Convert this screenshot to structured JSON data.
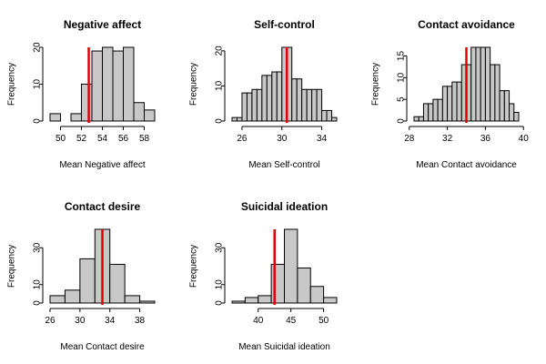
{
  "colors": {
    "bar_fill": "#c8c8c8",
    "bar_stroke": "#000000",
    "ref_line": "#e00000"
  },
  "chart_data": [
    {
      "type": "histogram",
      "title": "Negative affect",
      "xlabel": "Mean Negative affect",
      "ylabel": "Frequency",
      "bin_edges": [
        49,
        50,
        51,
        52,
        53,
        54,
        55,
        56,
        57,
        58,
        59
      ],
      "counts": [
        2,
        0,
        2,
        10,
        19,
        20,
        19,
        20,
        5,
        3
      ],
      "reference_line": 52.7,
      "xlim": [
        49,
        59
      ],
      "ylim": [
        0,
        20
      ],
      "xticks": [
        50,
        52,
        54,
        56,
        58
      ],
      "yticks": [
        0,
        10,
        20
      ],
      "grid": false,
      "legend": "none"
    },
    {
      "type": "histogram",
      "title": "Self-control",
      "xlabel": "Mean Self-control",
      "ylabel": "Frequency",
      "bin_edges": [
        25,
        25.5,
        26,
        26.5,
        27,
        27.5,
        28,
        28.5,
        29,
        29.5,
        30,
        30.5,
        31,
        31.5,
        32,
        32.5,
        33,
        33.5,
        34,
        34.5,
        35,
        35.5
      ],
      "counts": [
        1,
        1,
        8,
        8,
        9,
        9,
        13,
        13,
        14,
        14,
        21,
        21,
        12,
        12,
        9,
        9,
        9,
        9,
        3,
        3,
        1
      ],
      "reference_line": 30.5,
      "xlim": [
        25,
        35.5
      ],
      "ylim": [
        0,
        21
      ],
      "xticks": [
        26,
        30,
        34
      ],
      "yticks": [
        0,
        10,
        20
      ],
      "grid": false,
      "legend": "none"
    },
    {
      "type": "histogram",
      "title": "Contact avoidance",
      "xlabel": "Mean Contact avoidance",
      "ylabel": "Frequency",
      "bin_edges": [
        28.5,
        29,
        29.5,
        30,
        30.5,
        31,
        31.5,
        32,
        32.5,
        33,
        33.5,
        34,
        34.5,
        35,
        35.5,
        36,
        36.5,
        37,
        37.5,
        38,
        38.5,
        39,
        39.5
      ],
      "counts": [
        1,
        1,
        4,
        4,
        5,
        5,
        8,
        8,
        9,
        9,
        13,
        13,
        17,
        17,
        17,
        17,
        13,
        13,
        7,
        7,
        4,
        2
      ],
      "reference_line": 34,
      "xlim": [
        28.5,
        39.5
      ],
      "ylim": [
        0,
        17
      ],
      "xticks": [
        28,
        32,
        36,
        40
      ],
      "yticks": [
        0,
        5,
        10,
        15
      ],
      "grid": false,
      "legend": "none"
    },
    {
      "type": "histogram",
      "title": "Contact desire",
      "xlabel": "Mean Contact desire",
      "ylabel": "Frequency",
      "bin_edges": [
        26,
        28,
        30,
        32,
        34,
        36,
        38,
        40
      ],
      "counts": [
        4,
        7,
        24,
        40,
        21,
        4,
        1
      ],
      "reference_line": 33,
      "xlim": [
        26,
        40
      ],
      "ylim": [
        0,
        40
      ],
      "xticks": [
        26,
        30,
        34,
        38
      ],
      "yticks": [
        0,
        10,
        30
      ],
      "grid": false,
      "legend": "none"
    },
    {
      "type": "histogram",
      "title": "Suicidal ideation",
      "xlabel": "Mean Suicidal ideation",
      "ylabel": "Frequency",
      "bin_edges": [
        36,
        38,
        40,
        42,
        44,
        46,
        48,
        50,
        52
      ],
      "counts": [
        1,
        3,
        4,
        21,
        40,
        19,
        9,
        3
      ],
      "reference_line": 42.5,
      "xlim": [
        36,
        52
      ],
      "ylim": [
        0,
        40
      ],
      "xticks": [
        40,
        45,
        50
      ],
      "yticks": [
        0,
        10,
        30
      ],
      "grid": false,
      "legend": "none"
    }
  ]
}
